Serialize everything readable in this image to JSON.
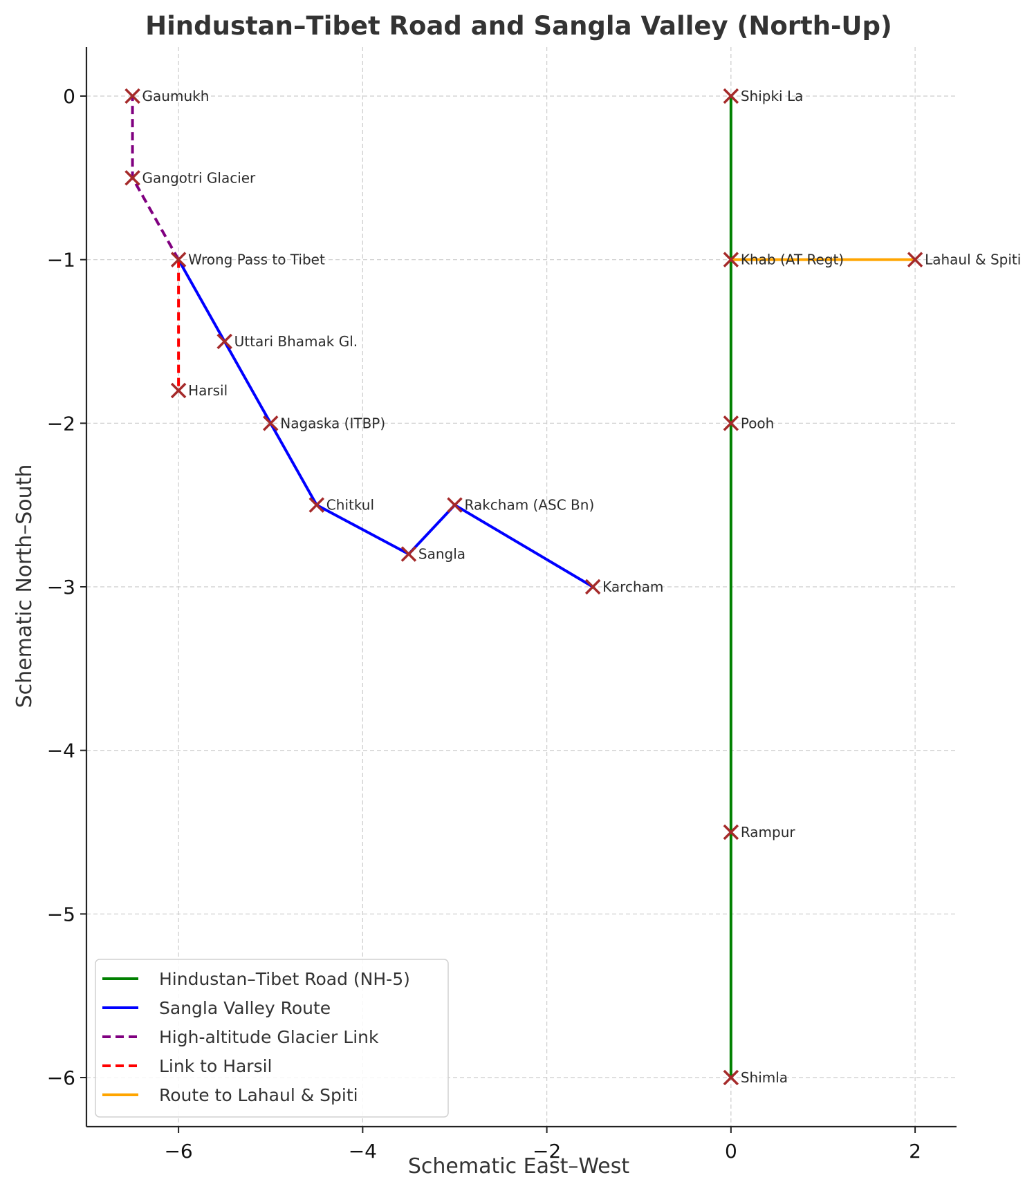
{
  "chart_data": {
    "type": "line",
    "title": "Hindustan–Tibet Road and Sangla Valley (North-Up)",
    "xlabel": "Schematic East–West",
    "ylabel": "Schematic North–South",
    "xlim": [
      -7.0,
      2.45
    ],
    "ylim": [
      -6.3,
      0.3
    ],
    "xticks": [
      -6,
      -4,
      -2,
      0,
      2
    ],
    "yticks": [
      0,
      -1,
      -2,
      -3,
      -4,
      -5,
      -6
    ],
    "xtick_labels": [
      "−6",
      "−4",
      "−2",
      "0",
      "2"
    ],
    "ytick_labels": [
      "0",
      "−1",
      "−2",
      "−3",
      "−4",
      "−5",
      "−6"
    ],
    "grid": true,
    "legend_position": "lower-left",
    "series": [
      {
        "name": "Hindustan–Tibet Road (NH-5)",
        "color": "#008000",
        "style": "solid",
        "x": [
          0,
          0,
          0,
          0,
          0
        ],
        "y": [
          -6,
          -4.5,
          -2,
          -1,
          0
        ]
      },
      {
        "name": "Sangla Valley Route",
        "color": "#0000ff",
        "style": "solid",
        "x": [
          -1.5,
          -3,
          -3.5,
          -4.5,
          -5,
          -5.5,
          -6
        ],
        "y": [
          -3,
          -2.5,
          -2.8,
          -2.5,
          -2,
          -1.5,
          -1
        ]
      },
      {
        "name": "High-altitude Glacier Link",
        "color": "#800080",
        "style": "dashed",
        "x": [
          -6,
          -6.5,
          -6.5
        ],
        "y": [
          -1,
          -0.5,
          0
        ]
      },
      {
        "name": "Link to Harsil",
        "color": "#ff0000",
        "style": "dashed",
        "x": [
          -6,
          -6
        ],
        "y": [
          -1,
          -1.8
        ]
      },
      {
        "name": "Route to Lahaul & Spiti",
        "color": "#ffa500",
        "style": "solid",
        "x": [
          0,
          2
        ],
        "y": [
          -1,
          -1
        ]
      }
    ],
    "points": [
      {
        "label": "Gaumukh",
        "x": -6.5,
        "y": 0
      },
      {
        "label": "Gangotri Glacier",
        "x": -6.5,
        "y": -0.5
      },
      {
        "label": "Wrong Pass to Tibet",
        "x": -6,
        "y": -1
      },
      {
        "label": "Uttari Bhamak Gl.",
        "x": -5.5,
        "y": -1.5
      },
      {
        "label": "Harsil",
        "x": -6,
        "y": -1.8
      },
      {
        "label": "Nagaska (ITBP)",
        "x": -5,
        "y": -2
      },
      {
        "label": "Chitkul",
        "x": -4.5,
        "y": -2.5
      },
      {
        "label": "Rakcham (ASC Bn)",
        "x": -3,
        "y": -2.5
      },
      {
        "label": "Sangla",
        "x": -3.5,
        "y": -2.8
      },
      {
        "label": "Karcham",
        "x": -1.5,
        "y": -3
      },
      {
        "label": "Shipki La",
        "x": 0,
        "y": 0
      },
      {
        "label": "Khab (AT Regt)",
        "x": 0,
        "y": -1
      },
      {
        "label": "Lahaul & Spiti",
        "x": 2,
        "y": -1
      },
      {
        "label": "Pooh",
        "x": 0,
        "y": -2
      },
      {
        "label": "Rampur",
        "x": 0,
        "y": -4.5
      },
      {
        "label": "Shimla",
        "x": 0,
        "y": -6
      }
    ],
    "marker": {
      "shape": "x",
      "color": "#a52a2a"
    }
  }
}
